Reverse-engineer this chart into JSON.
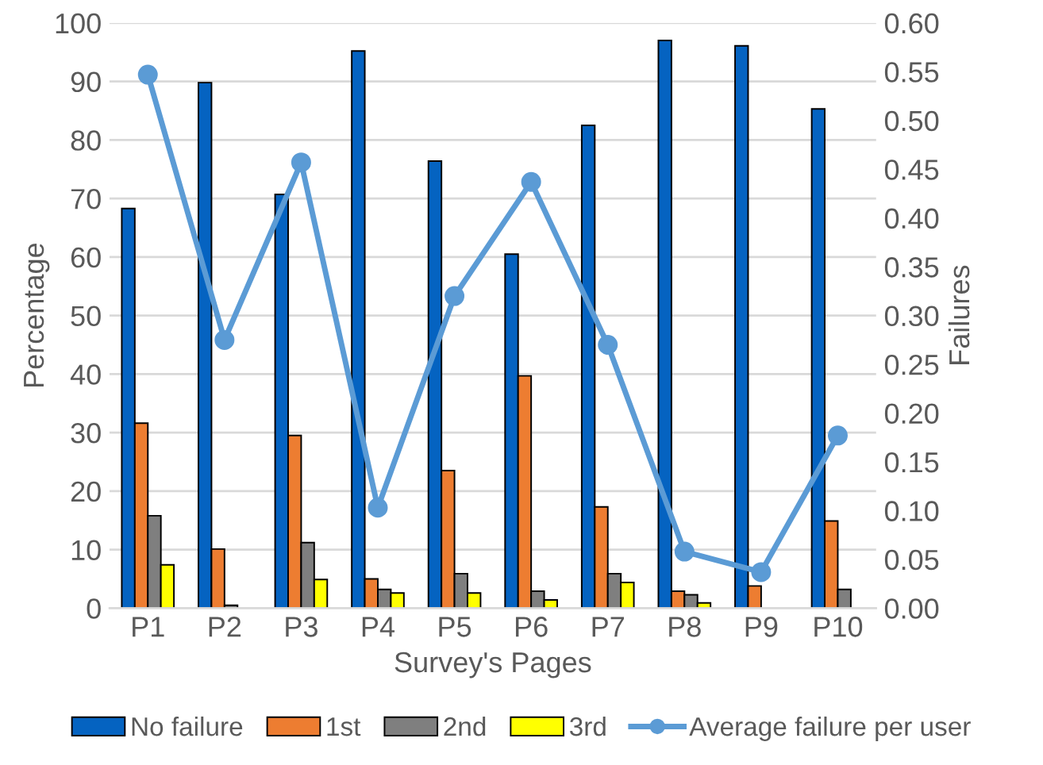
{
  "chart_data": {
    "type": "bar",
    "xlabel": "Survey's Pages",
    "ylabel": "Percentage",
    "y2label": "Failures",
    "categories": [
      "P1",
      "P2",
      "P3",
      "P4",
      "P5",
      "P6",
      "P7",
      "P8",
      "P9",
      "P10"
    ],
    "series": [
      {
        "name": "No failure",
        "color": "#0563c1",
        "values": [
          68.3,
          89.8,
          70.7,
          95.2,
          76.4,
          60.5,
          82.5,
          97.0,
          96.1,
          85.3
        ]
      },
      {
        "name": "1st",
        "color": "#ed7d31",
        "values": [
          31.6,
          10.1,
          29.5,
          5.0,
          23.5,
          39.7,
          17.3,
          2.9,
          3.8,
          14.9
        ]
      },
      {
        "name": "2nd",
        "color": "#7f7f7f",
        "values": [
          15.8,
          0.5,
          11.2,
          3.2,
          5.9,
          2.9,
          5.9,
          2.3,
          null,
          3.2
        ]
      },
      {
        "name": "3rd",
        "color": "#ffff00",
        "values": [
          7.4,
          null,
          4.9,
          2.6,
          2.6,
          1.4,
          4.4,
          0.9,
          null,
          null
        ]
      },
      {
        "name": "Average failure per user",
        "color": "#5b9bd5",
        "type": "line",
        "axis": "y2",
        "marker": "circle",
        "values": [
          0.547,
          0.275,
          0.457,
          0.103,
          0.32,
          0.437,
          0.27,
          0.058,
          0.037,
          0.177
        ]
      }
    ],
    "ylim": [
      0,
      100
    ],
    "yticks": [
      0,
      10,
      20,
      30,
      40,
      50,
      60,
      70,
      80,
      90,
      100
    ],
    "y2lim": [
      0,
      0.6
    ],
    "y2ticks": [
      {
        "value": 0,
        "label": "0.00"
      },
      {
        "value": 0.05,
        "label": "0.05"
      },
      {
        "value": 0.1,
        "label": "0.10"
      },
      {
        "value": 0.15,
        "label": "0.15"
      },
      {
        "value": 0.2,
        "label": "0.20"
      },
      {
        "value": 0.25,
        "label": "0.25"
      },
      {
        "value": 0.3,
        "label": "0.30"
      },
      {
        "value": 0.35,
        "label": "0.35"
      },
      {
        "value": 0.4,
        "label": "0.40"
      },
      {
        "value": 0.45,
        "label": "0.45"
      },
      {
        "value": 0.5,
        "label": "0.50"
      },
      {
        "value": 0.55,
        "label": "0.55"
      },
      {
        "value": 0.6,
        "label": "0.60"
      }
    ],
    "grid": "y",
    "legend": "bottom"
  }
}
